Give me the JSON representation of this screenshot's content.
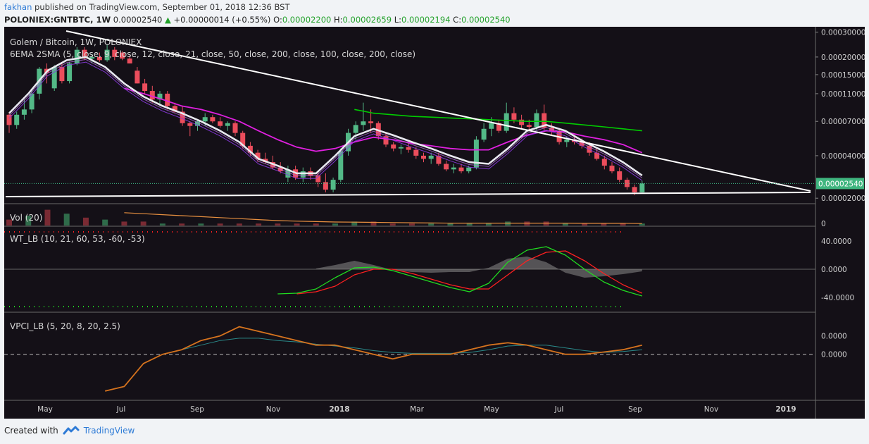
{
  "header": {
    "author": "fakhan",
    "published": "published on TradingView.com, September 01, 2018 12:36 BST",
    "symbol": "POLONIEX:GNTBTC, 1W",
    "last": "0.00002540",
    "change": "+0.00000014 (+0.55%)",
    "open_label": "O:",
    "open": "0.00002200",
    "high_label": "H:",
    "high": "0.00002659",
    "low_label": "L:",
    "low": "0.00002194",
    "close_label": "C:",
    "close": "0.00002540"
  },
  "panes": {
    "main_title": "Golem / Bitcoin, 1W, POLONIEX",
    "main_study": "6EMA 2SMA (5, close, 9, close, 12, close, 21, close, 50, close, 200, close, 100, close, 200, close)",
    "vol_title": "Vol (20)",
    "wt_title": "WT_LB (10, 21, 60, 53, -60, -53)",
    "vpci_title": "VPCI_LB (5, 20, 8, 20, 2.5)"
  },
  "price_axis": [
    "0.00030000",
    "0.00020000",
    "0.00015000",
    "0.00011000",
    "0.00007000",
    "0.00004000",
    "0.00002000"
  ],
  "current_price_tag": "0.00002540",
  "vol_axis": [
    "0"
  ],
  "wt_axis": [
    "40.0000",
    "0.0000",
    "-40.0000"
  ],
  "vpci_axis": [
    "0.0000",
    "0.0000"
  ],
  "time_axis": [
    "May",
    "Jul",
    "Sep",
    "Nov",
    "2018",
    "Mar",
    "May",
    "Jul",
    "Sep",
    "Nov",
    "2019"
  ],
  "footer": {
    "created_with": "Created with",
    "brand": "TradingView"
  },
  "colors": {
    "bg": "#141017",
    "up": "#53b987",
    "down": "#eb4d5c",
    "grid": "#2a2530",
    "trend": "#ffffff",
    "sma_green": "#00cc00",
    "ema_magenta": "#e020e0",
    "wt_red": "#ff2020",
    "wt_green": "#20dd20",
    "vpci_orange": "#d6731e",
    "vpci_teal": "#2a8a8a"
  },
  "chart_data": {
    "type": "candlestick",
    "x_categories": [
      "May",
      "Jul",
      "Sep",
      "Nov",
      "2018",
      "Mar",
      "May",
      "Jul",
      "Sep"
    ],
    "y_scale": "log",
    "y_ticks": [
      2e-05,
      4e-05,
      7e-05,
      0.00011,
      0.00015,
      0.0002,
      0.0003
    ],
    "candles": [
      {
        "o": 7.8e-05,
        "h": 8e-05,
        "l": 5.8e-05,
        "c": 6.6e-05
      },
      {
        "o": 6.6e-05,
        "h": 8.2e-05,
        "l": 6.2e-05,
        "c": 7.8e-05
      },
      {
        "o": 7.8e-05,
        "h": 0.0001,
        "l": 7.2e-05,
        "c": 8.5e-05
      },
      {
        "o": 8.5e-05,
        "h": 0.00012,
        "l": 8e-05,
        "c": 0.00011
      },
      {
        "o": 0.00011,
        "h": 0.00017,
        "l": 0.0001,
        "c": 0.000165
      },
      {
        "o": 0.000165,
        "h": 0.00018,
        "l": 0.00013,
        "c": 0.000155
      },
      {
        "o": 0.00012,
        "h": 0.000175,
        "l": 0.000115,
        "c": 0.00017
      },
      {
        "o": 0.00017,
        "h": 0.00018,
        "l": 0.00013,
        "c": 0.000135
      },
      {
        "o": 0.000135,
        "h": 0.000185,
        "l": 0.00013,
        "c": 0.00018
      },
      {
        "o": 0.00018,
        "h": 0.000235,
        "l": 0.000175,
        "c": 0.000225
      },
      {
        "o": 0.000225,
        "h": 0.000235,
        "l": 0.00019,
        "c": 0.000195
      },
      {
        "o": 0.000195,
        "h": 0.00021,
        "l": 0.00018,
        "c": 0.0002
      },
      {
        "o": 0.0002,
        "h": 0.000215,
        "l": 0.000185,
        "c": 0.00019
      },
      {
        "o": 0.00019,
        "h": 0.000245,
        "l": 0.000185,
        "c": 0.000225
      },
      {
        "o": 0.000225,
        "h": 0.000235,
        "l": 0.00019,
        "c": 0.0002
      },
      {
        "o": 0.000215,
        "h": 0.00022,
        "l": 0.00019,
        "c": 0.000195
      },
      {
        "o": 0.000195,
        "h": 0.000205,
        "l": 0.00018,
        "c": 0.00018
      },
      {
        "o": 0.00016,
        "h": 0.00017,
        "l": 0.00013,
        "c": 0.00013
      },
      {
        "o": 0.00013,
        "h": 0.00014,
        "l": 0.00011,
        "c": 0.000115
      },
      {
        "o": 0.000115,
        "h": 0.000125,
        "l": 9.5e-05,
        "c": 0.0001
      },
      {
        "o": 0.0001,
        "h": 0.000115,
        "l": 9e-05,
        "c": 0.00011
      },
      {
        "o": 0.00011,
        "h": 0.000115,
        "l": 8.5e-05,
        "c": 9e-05
      },
      {
        "o": 9e-05,
        "h": 9.5e-05,
        "l": 8e-05,
        "c": 8.2e-05
      },
      {
        "o": 8.2e-05,
        "h": 9e-05,
        "l": 6.5e-05,
        "c": 6.8e-05
      },
      {
        "o": 6.8e-05,
        "h": 7e-05,
        "l": 5.5e-05,
        "c": 6.5e-05
      },
      {
        "o": 6.5e-05,
        "h": 7.2e-05,
        "l": 6e-05,
        "c": 7e-05
      },
      {
        "o": 7e-05,
        "h": 8e-05,
        "l": 6.5e-05,
        "c": 7.5e-05
      },
      {
        "o": 7.5e-05,
        "h": 7.8e-05,
        "l": 6.8e-05,
        "c": 7e-05
      },
      {
        "o": 7e-05,
        "h": 7.5e-05,
        "l": 6.3e-05,
        "c": 6.5e-05
      },
      {
        "o": 6.5e-05,
        "h": 7e-05,
        "l": 6e-05,
        "c": 6.8e-05
      },
      {
        "o": 6.8e-05,
        "h": 7e-05,
        "l": 5.5e-05,
        "c": 5.8e-05
      },
      {
        "o": 5.8e-05,
        "h": 6e-05,
        "l": 4.5e-05,
        "c": 4.7e-05
      },
      {
        "o": 4.7e-05,
        "h": 5e-05,
        "l": 4e-05,
        "c": 4.2e-05
      },
      {
        "o": 4.2e-05,
        "h": 4.4e-05,
        "l": 3.6e-05,
        "c": 3.8e-05
      },
      {
        "o": 3.8e-05,
        "h": 4.2e-05,
        "l": 3.5e-05,
        "c": 3.6e-05
      },
      {
        "o": 3.6e-05,
        "h": 4e-05,
        "l": 3.2e-05,
        "c": 3.3e-05
      },
      {
        "o": 3.3e-05,
        "h": 3.6e-05,
        "l": 3e-05,
        "c": 3.1e-05
      },
      {
        "o": 2.8e-05,
        "h": 3.4e-05,
        "l": 2.6e-05,
        "c": 3.2e-05
      },
      {
        "o": 3.2e-05,
        "h": 3.4e-05,
        "l": 2.7e-05,
        "c": 2.8e-05
      },
      {
        "o": 2.8e-05,
        "h": 3.3e-05,
        "l": 2.6e-05,
        "c": 3.1e-05
      },
      {
        "o": 3.1e-05,
        "h": 3.3e-05,
        "l": 2.7e-05,
        "c": 2.9e-05
      },
      {
        "o": 2.9e-05,
        "h": 3.1e-05,
        "l": 2.4e-05,
        "c": 2.6e-05
      },
      {
        "o": 2.6e-05,
        "h": 3e-05,
        "l": 2.2e-05,
        "c": 2.3e-05
      },
      {
        "o": 2.3e-05,
        "h": 2.8e-05,
        "l": 2.2e-05,
        "c": 2.7e-05
      },
      {
        "o": 2.7e-05,
        "h": 4.5e-05,
        "l": 2.6e-05,
        "c": 4.3e-05
      },
      {
        "o": 4.3e-05,
        "h": 6.2e-05,
        "l": 4e-05,
        "c": 5.8e-05
      },
      {
        "o": 5.8e-05,
        "h": 7e-05,
        "l": 5.2e-05,
        "c": 6.6e-05
      },
      {
        "o": 6.6e-05,
        "h": 9.5e-05,
        "l": 6e-05,
        "c": 7e-05
      },
      {
        "o": 7e-05,
        "h": 8.5e-05,
        "l": 5.8e-05,
        "c": 6.8e-05
      },
      {
        "o": 6.8e-05,
        "h": 7e-05,
        "l": 5.2e-05,
        "c": 5.5e-05
      },
      {
        "o": 5.5e-05,
        "h": 5.8e-05,
        "l": 4.6e-05,
        "c": 4.8e-05
      },
      {
        "o": 4.8e-05,
        "h": 5e-05,
        "l": 4.3e-05,
        "c": 4.5e-05
      },
      {
        "o": 4.5e-05,
        "h": 4.8e-05,
        "l": 4.1e-05,
        "c": 4.6e-05
      },
      {
        "o": 4.6e-05,
        "h": 5e-05,
        "l": 4.2e-05,
        "c": 4.4e-05
      },
      {
        "o": 4.4e-05,
        "h": 4.6e-05,
        "l": 3.8e-05,
        "c": 4e-05
      },
      {
        "o": 4e-05,
        "h": 4.2e-05,
        "l": 3.6e-05,
        "c": 3.8e-05
      },
      {
        "o": 3.8e-05,
        "h": 4.2e-05,
        "l": 3.5e-05,
        "c": 4e-05
      },
      {
        "o": 4e-05,
        "h": 4.2e-05,
        "l": 3.4e-05,
        "c": 3.5e-05
      },
      {
        "o": 3.5e-05,
        "h": 3.7e-05,
        "l": 3.1e-05,
        "c": 3.2e-05
      },
      {
        "o": 3.2e-05,
        "h": 3.5e-05,
        "l": 3e-05,
        "c": 3.3e-05
      },
      {
        "o": 3.3e-05,
        "h": 3.5e-05,
        "l": 3e-05,
        "c": 3.1e-05
      },
      {
        "o": 3.1e-05,
        "h": 3.4e-05,
        "l": 3e-05,
        "c": 3.3e-05
      },
      {
        "o": 3.3e-05,
        "h": 5.5e-05,
        "l": 3.2e-05,
        "c": 5.2e-05
      },
      {
        "o": 5.2e-05,
        "h": 6.8e-05,
        "l": 5e-05,
        "c": 6.2e-05
      },
      {
        "o": 6.2e-05,
        "h": 7.5e-05,
        "l": 5.5e-05,
        "c": 6.8e-05
      },
      {
        "o": 6.8e-05,
        "h": 7.2e-05,
        "l": 5.8e-05,
        "c": 6e-05
      },
      {
        "o": 6e-05,
        "h": 9.5e-05,
        "l": 5.8e-05,
        "c": 8e-05
      },
      {
        "o": 8e-05,
        "h": 8.8e-05,
        "l": 6.8e-05,
        "c": 7.2e-05
      },
      {
        "o": 7.2e-05,
        "h": 7.8e-05,
        "l": 6.2e-05,
        "c": 6.6e-05
      },
      {
        "o": 6.6e-05,
        "h": 7.2e-05,
        "l": 6e-05,
        "c": 6.4e-05
      },
      {
        "o": 6.4e-05,
        "h": 8.5e-05,
        "l": 6e-05,
        "c": 8e-05
      },
      {
        "o": 8e-05,
        "h": 9.2e-05,
        "l": 6e-05,
        "c": 6.3e-05
      },
      {
        "o": 6.3e-05,
        "h": 6.8e-05,
        "l": 5.6e-05,
        "c": 6e-05
      },
      {
        "o": 6e-05,
        "h": 6.2e-05,
        "l": 4.8e-05,
        "c": 5e-05
      },
      {
        "o": 5e-05,
        "h": 5.5e-05,
        "l": 4.6e-05,
        "c": 5.2e-05
      },
      {
        "o": 5.2e-05,
        "h": 5.5e-05,
        "l": 4.8e-05,
        "c": 5e-05
      },
      {
        "o": 5e-05,
        "h": 5.3e-05,
        "l": 4.5e-05,
        "c": 4.7e-05
      },
      {
        "o": 4.7e-05,
        "h": 5e-05,
        "l": 4e-05,
        "c": 4.2e-05
      },
      {
        "o": 4.2e-05,
        "h": 4.5e-05,
        "l": 3.7e-05,
        "c": 3.8e-05
      },
      {
        "o": 3.8e-05,
        "h": 4e-05,
        "l": 3.2e-05,
        "c": 3.4e-05
      },
      {
        "o": 3.4e-05,
        "h": 3.6e-05,
        "l": 3e-05,
        "c": 3.1e-05
      },
      {
        "o": 3.1e-05,
        "h": 3.3e-05,
        "l": 2.6e-05,
        "c": 2.7e-05
      },
      {
        "o": 2.7e-05,
        "h": 2.8e-05,
        "l": 2.3e-05,
        "c": 2.4e-05
      },
      {
        "o": 2.4e-05,
        "h": 2.5e-05,
        "l": 2.1e-05,
        "c": 2.2e-05
      },
      {
        "o": 2.2e-05,
        "h": 2.66e-05,
        "l": 2.19e-05,
        "c": 2.54e-05
      }
    ],
    "trendline_upper": [
      {
        "x": "May 2017",
        "y": 0.00032
      },
      {
        "x": "Jan 2019",
        "y": 2.15e-05
      }
    ],
    "trendline_lower": [
      {
        "x": "Apr 2017",
        "y": 1.96e-05
      },
      {
        "x": "Jan 2019",
        "y": 2.15e-05
      }
    ],
    "current_price": 2.54e-05,
    "ema_white": [
      8e-05,
      0.00011,
      0.00016,
      0.00019,
      0.0002,
      0.00017,
      0.00013,
      0.000105,
      9e-05,
      8e-05,
      7e-05,
      6e-05,
      5e-05,
      3.8e-05,
      3.4e-05,
      3e-05,
      3e-05,
      4e-05,
      5.5e-05,
      6.2e-05,
      5.6e-05,
      5e-05,
      4.5e-05,
      4e-05,
      3.6e-05,
      3.5e-05,
      4.5e-05,
      6e-05,
      6.6e-05,
      6e-05,
      5e-05,
      4.3e-05,
      3.6e-05,
      2.9e-05
    ],
    "ema_magenta_50": [
      null,
      null,
      null,
      null,
      null,
      null,
      0.00012,
      0.00011,
      0.0001,
      9e-05,
      8.5e-05,
      7.8e-05,
      7e-05,
      6e-05,
      5.2e-05,
      4.6e-05,
      4.3e-05,
      4.5e-05,
      5e-05,
      5.4e-05,
      5.2e-05,
      4.9e-05,
      4.7e-05,
      4.5e-05,
      4.4e-05,
      4.4e-05,
      5e-05,
      5.6e-05,
      6e-05,
      5.9e-05,
      5.5e-05,
      5.2e-05,
      4.8e-05,
      4.2e-05
    ],
    "sma_green_100": [
      null,
      null,
      null,
      null,
      null,
      null,
      null,
      null,
      null,
      null,
      null,
      null,
      null,
      null,
      null,
      null,
      null,
      null,
      8.5e-05,
      8e-05,
      7.8e-05,
      7.6e-05,
      7.5e-05,
      7.4e-05,
      7.3e-05,
      7.2e-05,
      7.1e-05,
      7e-05,
      7e-05,
      6.8e-05,
      6.6e-05,
      6.4e-05,
      6.2e-05,
      6e-05
    ],
    "volume_values": [
      3,
      5,
      8,
      6,
      4,
      3,
      2,
      2,
      1,
      1,
      1,
      1,
      1,
      1,
      1,
      1,
      1,
      1,
      2,
      2,
      1,
      1,
      1,
      1,
      1,
      1,
      2,
      2,
      2,
      1,
      1,
      1,
      1,
      1
    ],
    "vol_sma": [
      null,
      null,
      null,
      null,
      null,
      null,
      6.5,
      6,
      5.5,
      5,
      4.5,
      4,
      3.5,
      3,
      2.5,
      2.2,
      2,
      1.8,
      1.7,
      1.6,
      1.5,
      1.4,
      1.3,
      1.2,
      1.2,
      1.2,
      1.2,
      1.2,
      1.2,
      1.2,
      1.1,
      1.1,
      1.1,
      1.0
    ],
    "wt1": [
      null,
      null,
      null,
      null,
      null,
      null,
      null,
      null,
      null,
      null,
      null,
      null,
      null,
      null,
      -35,
      -34,
      -28,
      -12,
      2,
      3,
      -2,
      -10,
      -18,
      -26,
      -32,
      -20,
      10,
      27,
      32,
      20,
      0,
      -18,
      -30,
      -38
    ],
    "wt2": [
      null,
      null,
      null,
      null,
      null,
      null,
      null,
      null,
      null,
      null,
      null,
      null,
      null,
      null,
      null,
      -35,
      -32,
      -24,
      -8,
      0,
      0,
      -6,
      -14,
      -22,
      -28,
      -28,
      -8,
      12,
      24,
      26,
      12,
      -6,
      -22,
      -34
    ],
    "wt_hist": [
      null,
      null,
      null,
      null,
      null,
      null,
      null,
      null,
      null,
      null,
      null,
      null,
      null,
      null,
      null,
      null,
      1,
      6,
      12,
      6,
      -1,
      -4,
      -5,
      -4,
      -4,
      2,
      15,
      18,
      10,
      -5,
      -12,
      -10,
      -7,
      -3
    ],
    "vpci": [
      null,
      null,
      null,
      null,
      null,
      -0.08,
      -0.07,
      -0.02,
      0.0,
      0.01,
      0.03,
      0.04,
      0.06,
      0.05,
      0.04,
      0.03,
      0.02,
      0.02,
      0.01,
      0.0,
      -0.01,
      0.0,
      0.0,
      0.0,
      0.01,
      0.02,
      0.025,
      0.02,
      0.01,
      0.0,
      0.0,
      0.005,
      0.01,
      0.02
    ],
    "vpci_signal": [
      null,
      null,
      null,
      null,
      null,
      null,
      null,
      null,
      0.0,
      0.01,
      0.02,
      0.03,
      0.035,
      0.035,
      0.03,
      0.027,
      0.022,
      0.018,
      0.014,
      0.008,
      0.004,
      0.002,
      0.002,
      0.002,
      0.004,
      0.01,
      0.018,
      0.02,
      0.02,
      0.014,
      0.008,
      0.004,
      0.006,
      0.01
    ]
  }
}
